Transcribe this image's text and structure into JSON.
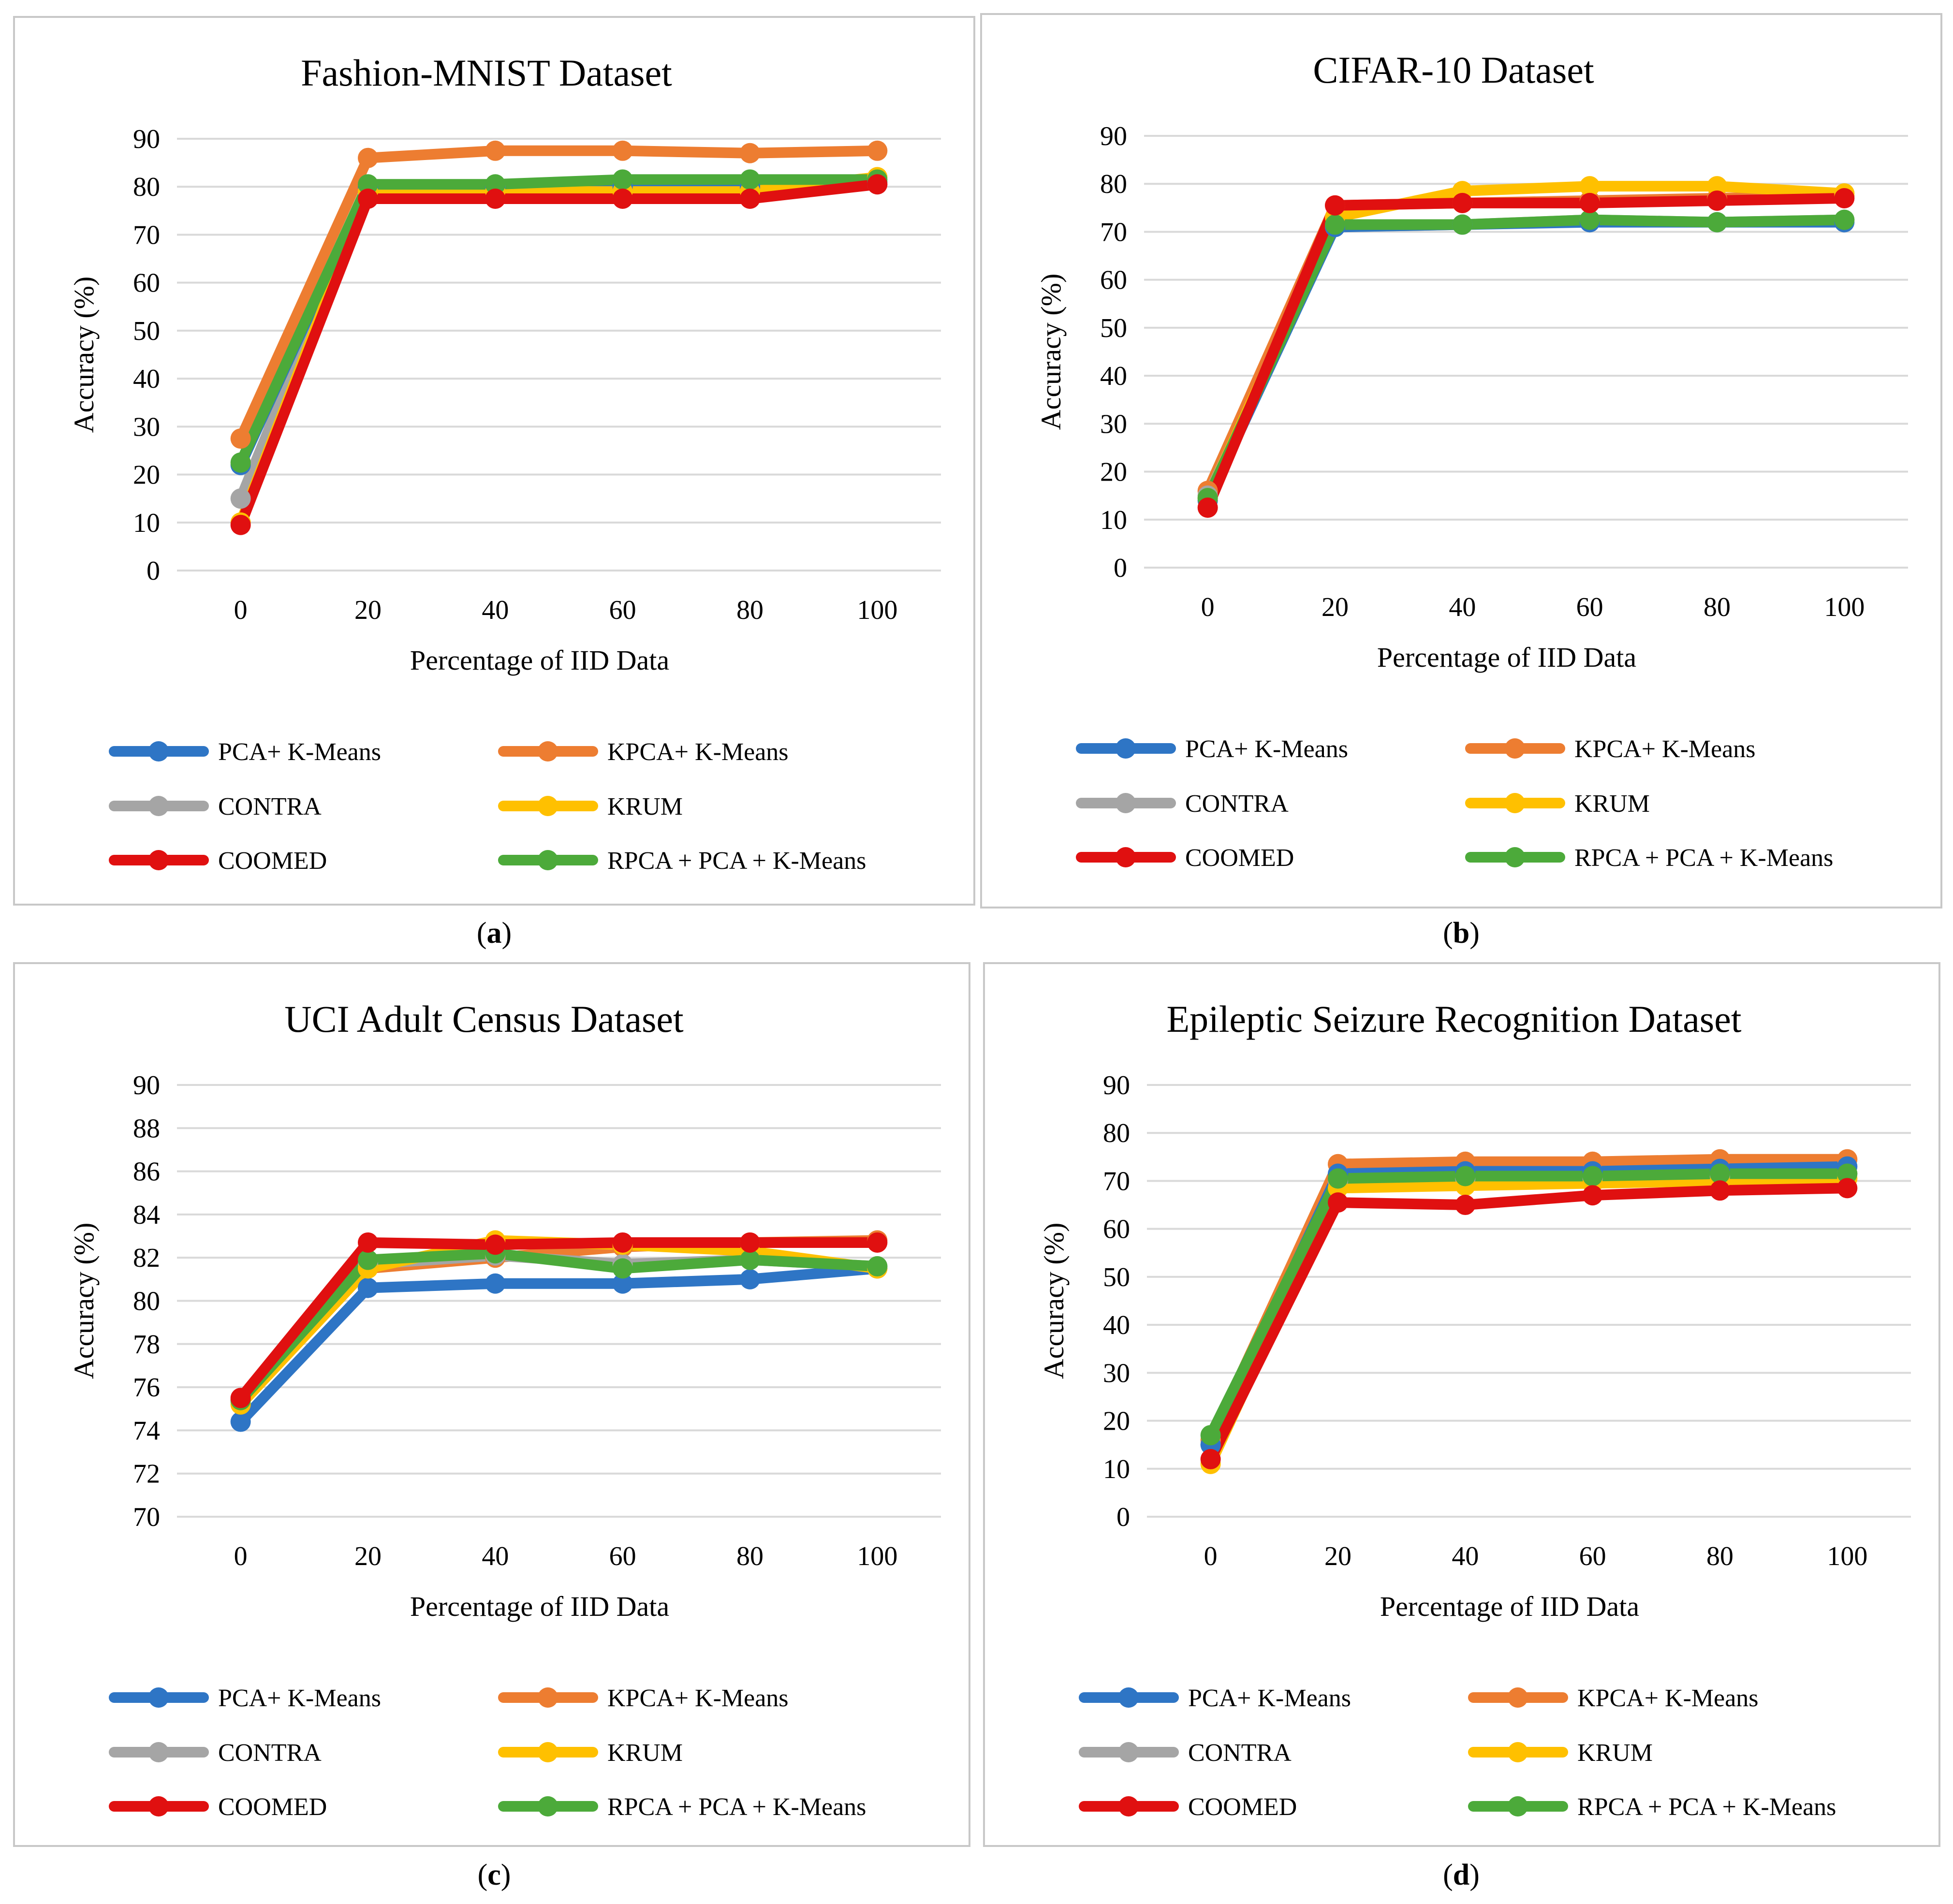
{
  "series_colors": {
    "PCA + K-Means": "#2e75c5",
    "KPCA + K-Means": "#ed7d31",
    "CONTRA": "#a5a5a5",
    "KRUM": "#ffc000",
    "COOMED": "#e01010",
    "RPCA + PCA + K-Means": "#4caa3a"
  },
  "chart_data": [
    {
      "type": "line",
      "title": "Fashion-MNIST Dataset",
      "caption": "a",
      "xlabel": "Percentage of IID Data",
      "ylabel": "Accuracy (%)",
      "x": [
        "0",
        "20",
        "40",
        "60",
        "80",
        "100"
      ],
      "yticks": [
        "0",
        "10",
        "20",
        "30",
        "40",
        "50",
        "60",
        "70",
        "80",
        "90"
      ],
      "ylim": [
        0,
        90
      ],
      "legend": [
        "PCA+ K-Means",
        "KPCA+ K-Means",
        "CONTRA",
        "KRUM",
        "COOMED",
        "RPCA + PCA + K-Means"
      ],
      "series": [
        {
          "name": "PCA + K-Means",
          "values": [
            22,
            80,
            80,
            80,
            80,
            81
          ]
        },
        {
          "name": "KPCA + K-Means",
          "values": [
            27.5,
            86,
            87.5,
            87.5,
            87,
            87.5
          ]
        },
        {
          "name": "CONTRA",
          "values": [
            15,
            80,
            80,
            80,
            80,
            80.5
          ]
        },
        {
          "name": "KRUM",
          "values": [
            10,
            79,
            79,
            79,
            79,
            82
          ]
        },
        {
          "name": "COOMED",
          "values": [
            9.5,
            77.5,
            77.5,
            77.5,
            77.5,
            80.5
          ]
        },
        {
          "name": "RPCA + PCA + K-Means",
          "values": [
            22.5,
            80.5,
            80.5,
            81.5,
            81.5,
            81.5
          ]
        }
      ]
    },
    {
      "type": "line",
      "title": "CIFAR-10 Dataset",
      "caption": "b",
      "xlabel": "Percentage of IID Data",
      "ylabel": "Accuracy (%)",
      "x": [
        "0",
        "20",
        "40",
        "60",
        "80",
        "100"
      ],
      "yticks": [
        "0",
        "10",
        "20",
        "30",
        "40",
        "50",
        "60",
        "70",
        "80",
        "90"
      ],
      "ylim": [
        0,
        90
      ],
      "legend": [
        "PCA+ K-Means",
        "KPCA+ K-Means",
        "CONTRA",
        "KRUM",
        "COOMED",
        "RPCA + PCA + K-Means"
      ],
      "series": [
        {
          "name": "PCA + K-Means",
          "values": [
            14,
            71,
            71.5,
            72,
            72,
            72
          ]
        },
        {
          "name": "KPCA + K-Means",
          "values": [
            16,
            75.5,
            76,
            76.5,
            77,
            77.5
          ]
        },
        {
          "name": "CONTRA",
          "values": [
            15,
            71,
            71.5,
            72.5,
            72,
            72.5
          ]
        },
        {
          "name": "KRUM",
          "values": [
            14.5,
            73,
            78.5,
            79.5,
            79.5,
            78
          ]
        },
        {
          "name": "COOMED",
          "values": [
            12.5,
            75.5,
            76,
            76,
            76.5,
            77
          ]
        },
        {
          "name": "RPCA + PCA + K-Means",
          "values": [
            14.5,
            71.5,
            71.5,
            72.5,
            72,
            72.5
          ]
        }
      ]
    },
    {
      "type": "line",
      "title": "UCI Adult Census Dataset",
      "caption": "c",
      "xlabel": "Percentage of IID Data",
      "ylabel": "Accuracy (%)",
      "x": [
        "0",
        "20",
        "40",
        "60",
        "80",
        "100"
      ],
      "yticks": [
        "70",
        "72",
        "74",
        "76",
        "78",
        "80",
        "82",
        "84",
        "86",
        "88",
        "90"
      ],
      "ylim": [
        70,
        90
      ],
      "legend": [
        "PCA+ K-Means",
        "KPCA+ K-Means",
        "CONTRA",
        "KRUM",
        "COOMED",
        "RPCA + PCA + K-Means"
      ],
      "series": [
        {
          "name": "PCA + K-Means",
          "values": [
            74.4,
            80.6,
            80.8,
            80.8,
            81.0,
            81.5
          ]
        },
        {
          "name": "KPCA + K-Means",
          "values": [
            75.4,
            81.5,
            82.0,
            82.5,
            82.7,
            82.8
          ]
        },
        {
          "name": "CONTRA",
          "values": [
            75.3,
            81.7,
            82.1,
            81.7,
            81.9,
            81.6
          ]
        },
        {
          "name": "KRUM",
          "values": [
            75.2,
            81.5,
            82.8,
            82.6,
            82.3,
            81.5
          ]
        },
        {
          "name": "COOMED",
          "values": [
            75.5,
            82.7,
            82.6,
            82.7,
            82.7,
            82.7
          ]
        },
        {
          "name": "RPCA + PCA + K-Means",
          "values": [
            75.4,
            81.9,
            82.2,
            81.5,
            81.9,
            81.6
          ]
        }
      ]
    },
    {
      "type": "line",
      "title": "Epileptic Seizure Recognition Dataset",
      "caption": "d",
      "xlabel": "Percentage of IID Data",
      "ylabel": "Accuracy (%)",
      "x": [
        "0",
        "20",
        "40",
        "60",
        "80",
        "100"
      ],
      "yticks": [
        "0",
        "10",
        "20",
        "30",
        "40",
        "50",
        "60",
        "70",
        "80",
        "90"
      ],
      "ylim": [
        0,
        90
      ],
      "legend": [
        "PCA+ K-Means",
        "KPCA+ K-Means",
        "CONTRA",
        "KRUM",
        "COOMED",
        "RPCA + PCA + K-Means"
      ],
      "series": [
        {
          "name": "PCA + K-Means",
          "values": [
            15,
            71.5,
            72,
            72,
            72.5,
            73
          ]
        },
        {
          "name": "KPCA + K-Means",
          "values": [
            16,
            73.5,
            74,
            74,
            74.5,
            74.5
          ]
        },
        {
          "name": "CONTRA",
          "values": [
            15,
            70,
            70.5,
            70.5,
            71,
            71.5
          ]
        },
        {
          "name": "KRUM",
          "values": [
            11,
            68.5,
            69,
            69.5,
            70,
            70.5
          ]
        },
        {
          "name": "COOMED",
          "values": [
            12,
            65.5,
            65,
            67,
            68,
            68.5
          ]
        },
        {
          "name": "RPCA + PCA + K-Means",
          "values": [
            17,
            70.5,
            71,
            71,
            71.5,
            71.5
          ]
        }
      ]
    }
  ]
}
